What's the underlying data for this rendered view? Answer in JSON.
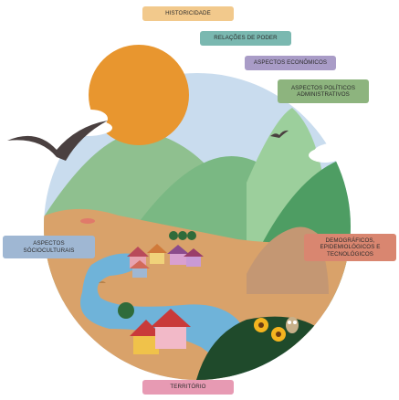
{
  "labels": {
    "historicidade": "HISTORICIDADE",
    "relacoes_de_poder": "RELAÇÕES DE PODER",
    "aspectos_economicos": "ASPECTOS ECONÔMICOS",
    "aspectos_politicos": "ASPECTOS POLÍTICOS\nADMINISTRATIVOS",
    "aspectos_socioculturais": "ASPECTOS\nSÓCIOCULTURAIS",
    "demograficos": "DEMOGRÁFICOS,\nEPIDEMIOLÓGICOS E\nTECNOLÓGICOS",
    "territorio": "TERRITÓRIO"
  },
  "colors": {
    "sky": "#c9dcee",
    "sun": "#e8962f",
    "mountain_light": "#7cbd86",
    "mountain_dark": "#4e9d63",
    "ground": "#d9a26a",
    "river": "#6fb3d9",
    "forest": "#1f4a2b",
    "historicidade": "#f2c98c",
    "relacoes_de_poder": "#7ab8b0",
    "aspectos_economicos": "#a99cc7",
    "aspectos_politicos": "#8db47e",
    "aspectos_socioculturais": "#9fb7d3",
    "demograficos": "#d98670",
    "territorio": "#e79ab3"
  }
}
